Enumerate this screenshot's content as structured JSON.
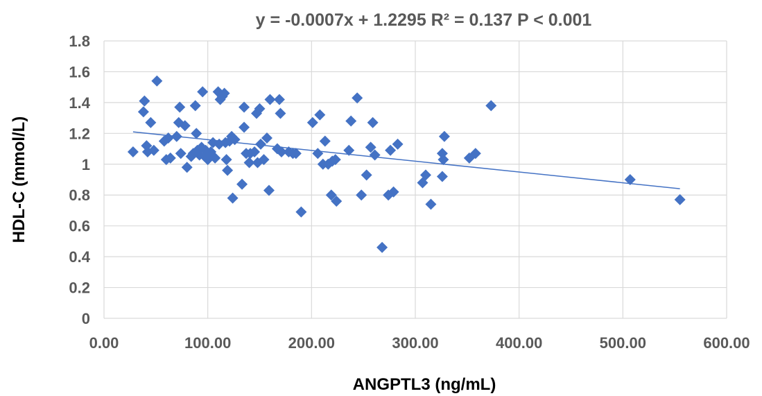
{
  "chart_data": {
    "type": "scatter",
    "title": "y = -0.0007x + 1.2295 R² = 0.137   P < 0.001",
    "xlabel": "ANGPTL3 (ng/mL)",
    "ylabel": "HDL-C (mmol/L)",
    "xlim": [
      0,
      600
    ],
    "ylim": [
      0,
      1.8
    ],
    "x_ticks": [
      "0.00",
      "100.00",
      "200.00",
      "300.00",
      "400.00",
      "500.00",
      "600.00"
    ],
    "y_ticks": [
      "0",
      "0.2",
      "0.4",
      "0.6",
      "0.8",
      "1",
      "1.2",
      "1.4",
      "1.6",
      "1.8"
    ],
    "grid": true,
    "marker_color": "#4472C4",
    "trendline": {
      "slope": -0.0007,
      "intercept": 1.2295,
      "x_range": [
        28,
        555
      ],
      "color": "#4472C4"
    },
    "points": [
      [
        28,
        1.08
      ],
      [
        38,
        1.34
      ],
      [
        39,
        1.41
      ],
      [
        41,
        1.12
      ],
      [
        42,
        1.08
      ],
      [
        45,
        1.27
      ],
      [
        48,
        1.09
      ],
      [
        51,
        1.54
      ],
      [
        58,
        1.15
      ],
      [
        60,
        1.03
      ],
      [
        62,
        1.17
      ],
      [
        64,
        1.04
      ],
      [
        70,
        1.18
      ],
      [
        72,
        1.27
      ],
      [
        73,
        1.37
      ],
      [
        74,
        1.07
      ],
      [
        78,
        1.25
      ],
      [
        80,
        0.98
      ],
      [
        84,
        1.05
      ],
      [
        86,
        1.07
      ],
      [
        88,
        1.38
      ],
      [
        89,
        1.2
      ],
      [
        90,
        1.09
      ],
      [
        92,
        1.06
      ],
      [
        94,
        1.11
      ],
      [
        95,
        1.47
      ],
      [
        97,
        1.05
      ],
      [
        98,
        1.09
      ],
      [
        100,
        1.03
      ],
      [
        102,
        1.05
      ],
      [
        103,
        1.08
      ],
      [
        105,
        1.14
      ],
      [
        107,
        1.04
      ],
      [
        110,
        1.47
      ],
      [
        111,
        1.13
      ],
      [
        112,
        1.42
      ],
      [
        114,
        1.44
      ],
      [
        116,
        1.46
      ],
      [
        117,
        1.14
      ],
      [
        118,
        1.03
      ],
      [
        119,
        0.96
      ],
      [
        121,
        1.15
      ],
      [
        123,
        1.18
      ],
      [
        124,
        0.78
      ],
      [
        126,
        1.16
      ],
      [
        133,
        0.87
      ],
      [
        135,
        1.37
      ],
      [
        135,
        1.24
      ],
      [
        137,
        1.07
      ],
      [
        140,
        1.01
      ],
      [
        141,
        1.07
      ],
      [
        145,
        1.08
      ],
      [
        147,
        1.33
      ],
      [
        148,
        1.01
      ],
      [
        150,
        1.36
      ],
      [
        151,
        1.13
      ],
      [
        154,
        1.03
      ],
      [
        157,
        1.17
      ],
      [
        159,
        0.83
      ],
      [
        160,
        1.42
      ],
      [
        167,
        1.1
      ],
      [
        169,
        1.42
      ],
      [
        170,
        1.33
      ],
      [
        171,
        1.08
      ],
      [
        178,
        1.08
      ],
      [
        182,
        1.07
      ],
      [
        185,
        1.07
      ],
      [
        190,
        0.69
      ],
      [
        201,
        1.27
      ],
      [
        206,
        1.07
      ],
      [
        208,
        1.32
      ],
      [
        211,
        1.0
      ],
      [
        213,
        1.15
      ],
      [
        216,
        1.0
      ],
      [
        219,
        0.8
      ],
      [
        220,
        1.02
      ],
      [
        223,
        1.03
      ],
      [
        224,
        0.76
      ],
      [
        236,
        1.09
      ],
      [
        238,
        1.28
      ],
      [
        244,
        1.43
      ],
      [
        248,
        0.8
      ],
      [
        253,
        0.93
      ],
      [
        257,
        1.11
      ],
      [
        259,
        1.27
      ],
      [
        261,
        1.06
      ],
      [
        268,
        0.46
      ],
      [
        274,
        0.8
      ],
      [
        276,
        1.09
      ],
      [
        279,
        0.82
      ],
      [
        283,
        1.13
      ],
      [
        307,
        0.88
      ],
      [
        310,
        0.93
      ],
      [
        315,
        0.74
      ],
      [
        326,
        0.92
      ],
      [
        326,
        1.07
      ],
      [
        327,
        1.03
      ],
      [
        328,
        1.18
      ],
      [
        352,
        1.04
      ],
      [
        358,
        1.07
      ],
      [
        373,
        1.38
      ],
      [
        507,
        0.9
      ],
      [
        555,
        0.77
      ]
    ]
  }
}
